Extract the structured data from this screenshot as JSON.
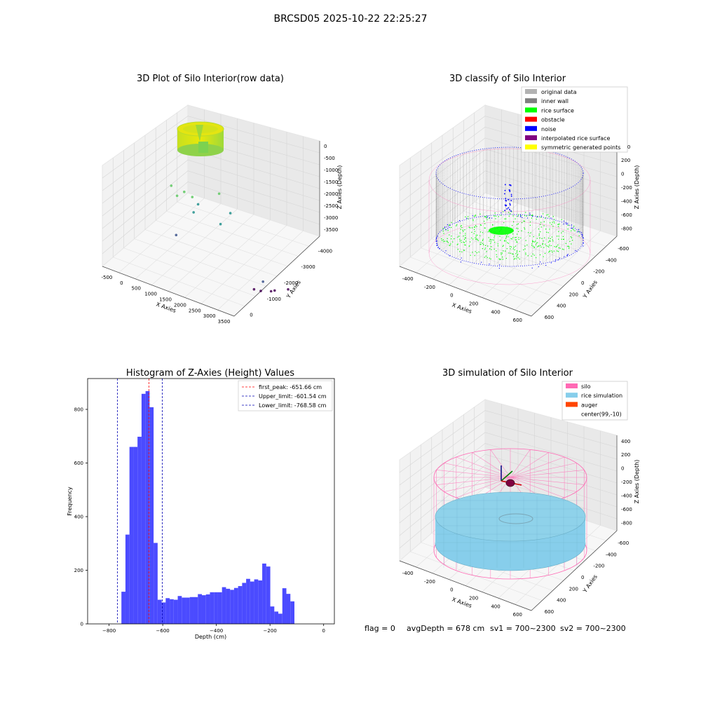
{
  "figure": {
    "suptitle": "BRCSD05 2025-10-22 22:25:27",
    "status": {
      "flag": "flag = 0",
      "avg_depth": "avgDepth = 678 cm",
      "sv1": "sv1 = 700~2300",
      "sv2": "sv2 = 700~2300"
    }
  },
  "colors": {
    "hist_bar": "#4b4bff",
    "first_peak": "#ff0000",
    "limits": "#0000b3",
    "original_data": "#b3b3b3",
    "inner_wall": "#808080",
    "rice_surface": "#00ff00",
    "obstacle": "#ff0000",
    "noise": "#0000ff",
    "interpolated_rice_surface": "#800080",
    "symmetric_generated_points": "#ffff00",
    "silo": "#ff69b4",
    "rice_simulation": "#87ceeb",
    "auger": "#ff4500"
  },
  "chart_data": [
    {
      "type": "scatter",
      "title": "3D Plot of Silo Interior(row data)",
      "xlabel": "X Axies",
      "ylabel": "Y Axies",
      "zlabel": "Z Axies (Depth)",
      "x_ticks": [
        "-500",
        "0",
        "500",
        "1000",
        "1500",
        "2000",
        "2500",
        "3000",
        "3500"
      ],
      "y_ticks": [
        "0",
        "-1000",
        "-2000",
        "-3000",
        "-4000"
      ],
      "z_ticks": [
        "0",
        "-500",
        "-1000",
        "-1500",
        "-2000",
        "-2500",
        "-3000",
        "-3500"
      ],
      "xlim": [
        -650,
        3600
      ],
      "ylim": [
        -4300,
        400
      ],
      "zlim": [
        -3800,
        150
      ],
      "colormap": "viridis",
      "dense_cluster": {
        "center_x": 100,
        "center_y": 0,
        "radius": 550,
        "z_range": [
          -800,
          0
        ]
      },
      "points": [
        {
          "x": 1500,
          "y": 0,
          "z": -1200
        },
        {
          "x": 1800,
          "y": 200,
          "z": -1350
        },
        {
          "x": 2300,
          "y": -100,
          "z": -900
        },
        {
          "x": 1200,
          "y": -600,
          "z": -1700
        },
        {
          "x": 2000,
          "y": -700,
          "z": -1850
        },
        {
          "x": 2600,
          "y": -200,
          "z": -1400
        },
        {
          "x": 700,
          "y": -500,
          "z": -2500
        },
        {
          "x": 2900,
          "y": -1500,
          "z": -3300
        },
        {
          "x": 3100,
          "y": -1800,
          "z": -3500
        },
        {
          "x": 2700,
          "y": -2300,
          "z": -3600
        },
        {
          "x": 2200,
          "y": -2600,
          "z": -3700
        },
        {
          "x": 1700,
          "y": -3100,
          "z": -3750
        },
        {
          "x": 3300,
          "y": -2200,
          "z": -3400
        },
        {
          "x": 1000,
          "y": 300,
          "z": -1000
        },
        {
          "x": 1300,
          "y": 100,
          "z": -1100
        },
        {
          "x": 900,
          "y": -200,
          "z": -1300
        }
      ]
    },
    {
      "type": "scatter",
      "title": "3D classify of Silo Interior",
      "xlabel": "X Axies",
      "ylabel": "Y Axies",
      "zlabel": "Z Axies (Depth)",
      "x_ticks": [
        "-400",
        "-200",
        "0",
        "200",
        "400",
        "600"
      ],
      "y_ticks": [
        "600",
        "400",
        "200",
        "0",
        "-200",
        "-400",
        "-600"
      ],
      "z_ticks": [
        "400",
        "200",
        "0",
        "-200",
        "-400",
        "-600",
        "-800"
      ],
      "xlim": [
        -550,
        750
      ],
      "ylim": [
        -650,
        700
      ],
      "zlim": [
        -950,
        450
      ],
      "legend": [
        "original data",
        "inner wall",
        "rice surface",
        "obstacle",
        "noise",
        "interpolated rice surface",
        "symmetric generated points"
      ],
      "legend_position": "top-right",
      "silo": {
        "center_x": 99,
        "center_y": -10,
        "radius": 520,
        "z_top": 0,
        "z_bottom": -800
      }
    },
    {
      "type": "bar",
      "title": "Histogram of Z-Axies (Height) Values",
      "xlabel": "Depth (cm)",
      "ylabel": "Frequency",
      "xlim": [
        -880,
        40
      ],
      "ylim": [
        0,
        915
      ],
      "x_ticks": [
        -800,
        -600,
        -400,
        -200,
        0
      ],
      "x_tick_labels": [
        "−800",
        "−600",
        "−400",
        "−200",
        "0"
      ],
      "y_ticks": [
        0,
        200,
        400,
        600,
        800
      ],
      "bin_start": -754,
      "bin_width": 15,
      "values": [
        120,
        333,
        660,
        660,
        698,
        858,
        868,
        808,
        302,
        90,
        80,
        96,
        92,
        90,
        104,
        98,
        98,
        100,
        100,
        111,
        107,
        110,
        118,
        118,
        118,
        137,
        131,
        127,
        134,
        141,
        153,
        168,
        158,
        166,
        162,
        225,
        214,
        65,
        46,
        38,
        133,
        112,
        84
      ],
      "lines": [
        {
          "label": "first_peak: -651.66 cm",
          "x": -651.66,
          "style": "red"
        },
        {
          "label": "Upper_limit: -601.54 cm",
          "x": -601.54,
          "style": "blue"
        },
        {
          "label": "Lower_limit: -768.58 cm",
          "x": -768.58,
          "style": "blue"
        }
      ],
      "legend_position": "top-right"
    },
    {
      "type": "scatter",
      "title": "3D simulation of Silo Interior",
      "xlabel": "X Axies",
      "ylabel": "Y Axies",
      "zlabel": "Z Axies (Depth)",
      "x_ticks": [
        "-400",
        "-200",
        "0",
        "200",
        "400",
        "600"
      ],
      "y_ticks": [
        "600",
        "400",
        "200",
        "0",
        "-200",
        "-400",
        "-600"
      ],
      "z_ticks": [
        "400",
        "200",
        "0",
        "-200",
        "-400",
        "-600",
        "-800"
      ],
      "xlim": [
        -550,
        750
      ],
      "ylim": [
        -650,
        700
      ],
      "zlim": [
        -950,
        450
      ],
      "legend": [
        "silo",
        "rice simulation",
        "auger",
        "center(99,-10)"
      ],
      "legend_position": "top-right",
      "rice_surface_depth": -678
    }
  ]
}
